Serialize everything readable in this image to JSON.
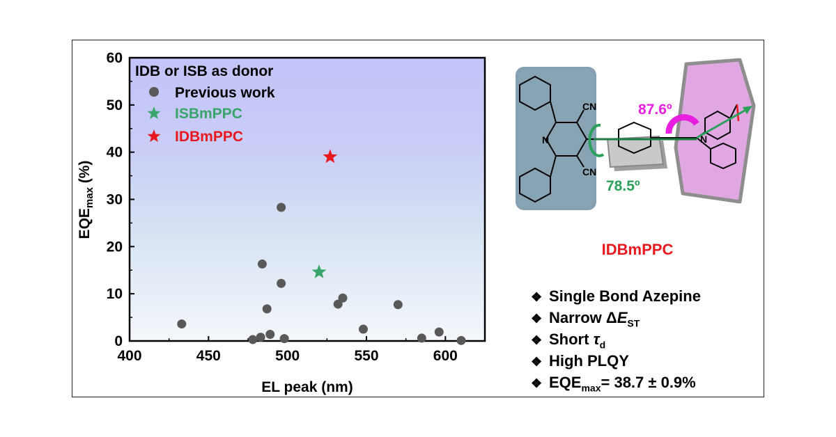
{
  "chart_data": {
    "type": "scatter",
    "xlabel": "EL peak (nm)",
    "ylabel_main": "EQE",
    "ylabel_sub": "max",
    "ylabel_unit": " (%)",
    "xlim": [
      400,
      625
    ],
    "ylim": [
      0,
      60
    ],
    "xticks": [
      400,
      450,
      500,
      550,
      600
    ],
    "yticks": [
      0,
      10,
      20,
      30,
      40,
      50,
      60
    ],
    "legend_title": "IDB or ISB as donor",
    "series": [
      {
        "name": "Previous work",
        "marker": "circle",
        "color": "#595959",
        "points": [
          [
            433,
            3.6
          ],
          [
            478,
            0.3
          ],
          [
            483,
            0.8
          ],
          [
            484,
            16.3
          ],
          [
            487,
            6.8
          ],
          [
            489,
            1.4
          ],
          [
            496,
            12.2
          ],
          [
            496,
            28.3
          ],
          [
            498,
            0.5
          ],
          [
            532,
            7.8
          ],
          [
            535,
            9.1
          ],
          [
            548,
            2.5
          ],
          [
            570,
            7.7
          ],
          [
            585,
            0.6
          ],
          [
            596,
            1.9
          ],
          [
            610,
            0.1
          ]
        ]
      },
      {
        "name": "ISBmPPC",
        "marker": "star",
        "color": "#3aa56a",
        "points": [
          [
            520,
            14.6
          ]
        ]
      },
      {
        "name": "IDBmPPC",
        "marker": "star",
        "color": "#e8191e",
        "points": [
          [
            527,
            39.0
          ]
        ]
      }
    ]
  },
  "molecule": {
    "name": "IDBmPPC",
    "name_color": "#e8191e",
    "cn_top": "CN",
    "cn_bottom": "CN",
    "n_pyridine": "N",
    "n_amine": "N",
    "angle_donor": "87.6º",
    "angle_acceptor": "78.5º",
    "colors": {
      "donor_angle": "#e81ee0",
      "acceptor_angle": "#2aa05a"
    }
  },
  "highlights": {
    "b1": "Single Bond Azepine",
    "b2_pre": "Narrow Δ",
    "b2_var": "E",
    "b2_sub": "ST",
    "b3_pre": "Short ",
    "b3_var": "τ",
    "b3_sub": "d",
    "b4": "High PLQY",
    "b5_pre": "EQE",
    "b5_sub": "max",
    "b5_post": "= 38.7 ± 0.9%",
    "marker": "❖"
  }
}
